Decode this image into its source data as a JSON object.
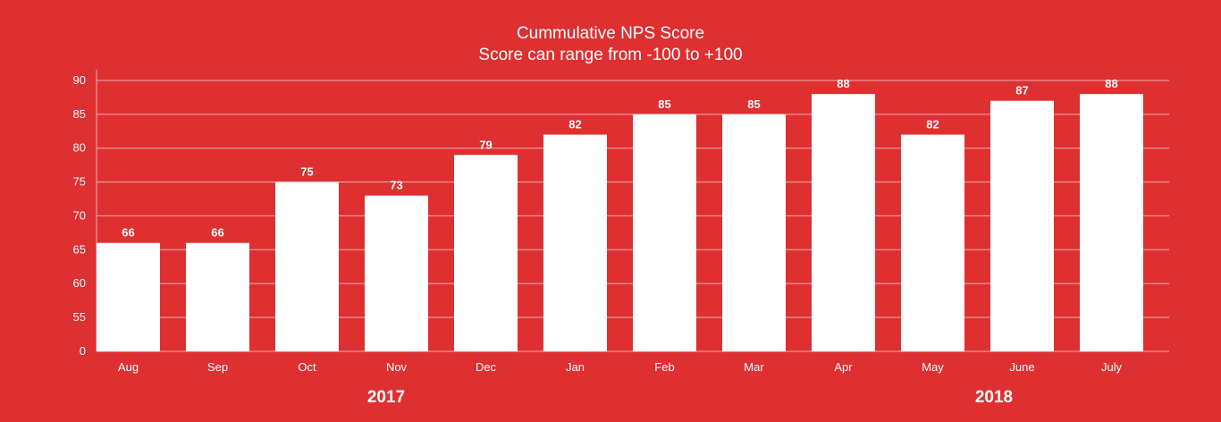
{
  "chart_data": {
    "type": "bar",
    "title": "Cummulative NPS Score",
    "subtitle": "Score can range from -100 to +100",
    "categories": [
      "Aug",
      "Sep",
      "Oct",
      "Nov",
      "Dec",
      "Jan",
      "Feb",
      "Mar",
      "Apr",
      "May",
      "June",
      "July"
    ],
    "values": [
      66,
      66,
      75,
      73,
      79,
      82,
      85,
      85,
      88,
      82,
      87,
      88
    ],
    "data_labels": [
      "66",
      "66",
      "75",
      "73",
      "79",
      "82",
      "85",
      "85",
      "88",
      "82",
      "87",
      "88"
    ],
    "y_ticks": [
      "0",
      "55",
      "60",
      "65",
      "70",
      "75",
      "80",
      "85",
      "90"
    ],
    "y_tick_values": [
      0,
      55,
      60,
      65,
      70,
      75,
      80,
      85,
      90
    ],
    "ylim": [
      0,
      90
    ],
    "y_axis_break": true,
    "grid": true,
    "legend": "none",
    "year_groups": [
      {
        "label": "2017",
        "start_index": 0,
        "end_index": 5
      },
      {
        "label": "2018",
        "start_index": 6,
        "end_index": 11
      }
    ],
    "colors": {
      "background": "#de2f31",
      "bar": "#ffffff",
      "text": "#ffffff",
      "grid": "#f3b0b1"
    }
  }
}
